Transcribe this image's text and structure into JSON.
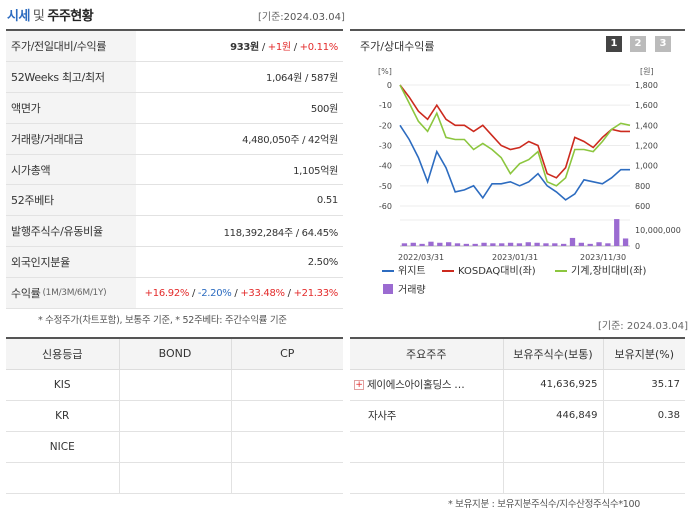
{
  "header": {
    "title_accent": "시세",
    "title_sep": "및",
    "title_rest": "주주현황",
    "basis_label": "[기준:",
    "basis_date": "2024.03.04",
    "basis_close": "]"
  },
  "info": {
    "rows": [
      {
        "label": "주가/전일대비/수익률",
        "v1": "933원",
        "sep1": " / ",
        "v2": "+1원",
        "sep2": " / ",
        "v3": "+0.11%"
      },
      {
        "label": "52Weeks 최고/최저",
        "value": "1,064원 / 587원"
      },
      {
        "label": "액면가",
        "value": "500원"
      },
      {
        "label": "거래량/거래대금",
        "value": "4,480,050주 / 42억원"
      },
      {
        "label": "시가총액",
        "value": "1,105억원"
      },
      {
        "label": "52주베타",
        "value": "0.51"
      },
      {
        "label": "발행주식수/유동비율",
        "value": "118,392,284주 / 64.45%"
      },
      {
        "label": "외국인지분율",
        "value": "2.50%"
      },
      {
        "label": "수익률",
        "label_sub": "(1M/3M/6M/1Y)",
        "r1": "+16.92%",
        "r2": "-2.20%",
        "r3": "+33.48%",
        "r4": "+21.33%"
      }
    ],
    "note": "* 수정주가(차트포함), 보통주 기준, * 52주베타: 주간수익률 기준"
  },
  "chart": {
    "title": "주가/상대수익률",
    "pages": [
      "1",
      "2",
      "3"
    ]
  },
  "chart_data": {
    "type": "line",
    "left_unit": "[%]",
    "right_unit": "[원]",
    "left_ticks": [
      "0",
      "-10",
      "-20",
      "-30",
      "-40",
      "-50",
      "-60"
    ],
    "right_ticks": [
      "1,800",
      "1,600",
      "1,400",
      "1,200",
      "1,000",
      "800",
      "600"
    ],
    "volume_ticks": [
      "10,000,000",
      "0"
    ],
    "x_ticks": [
      "2022/03/31",
      "2023/01/31",
      "2023/11/30"
    ],
    "ylim_left": [
      -65,
      0
    ],
    "series": [
      {
        "name": "위지트",
        "color": "#2d6cc0",
        "values": [
          -20,
          -27,
          -36,
          -48,
          -33,
          -41,
          -53,
          -52,
          -50,
          -56,
          -49,
          -49,
          -48,
          -50,
          -48,
          -44,
          -50,
          -53,
          -57,
          -54,
          -47,
          -48,
          -49,
          -46,
          -42,
          -42
        ]
      },
      {
        "name": "KOSDAQ대비(좌)",
        "color": "#cc2a1e",
        "values": [
          0,
          -6,
          -13,
          -17,
          -10,
          -17,
          -20,
          -20,
          -23,
          -20,
          -25,
          -30,
          -32,
          -31,
          -28,
          -30,
          -44,
          -46,
          -41,
          -26,
          -28,
          -31,
          -26,
          -22,
          -23,
          -23
        ]
      },
      {
        "name": "기계,장비대비(좌)",
        "color": "#8cc63f",
        "values": [
          0,
          -9,
          -18,
          -23,
          -14,
          -26,
          -27,
          -27,
          -32,
          -29,
          -32,
          -36,
          -44,
          -39,
          -37,
          -33,
          -48,
          -50,
          -46,
          -32,
          -32,
          -33,
          -28,
          -22,
          -19,
          -20
        ]
      }
    ],
    "volume": {
      "name": "거래량",
      "color": "#9b6bd1",
      "values": [
        0.5,
        0.6,
        0.4,
        0.8,
        0.6,
        0.7,
        0.5,
        0.4,
        0.4,
        0.6,
        0.5,
        0.5,
        0.6,
        0.5,
        0.7,
        0.6,
        0.5,
        0.5,
        0.4,
        1.5,
        0.6,
        0.4,
        0.7,
        0.5,
        5.0,
        1.4
      ]
    }
  },
  "basis_mid": "[기준: 2024.03.04]",
  "credit": {
    "headers": [
      "신용등급",
      "BOND",
      "CP"
    ],
    "rows": [
      [
        "KIS",
        "",
        ""
      ],
      [
        "KR",
        "",
        ""
      ],
      [
        "NICE",
        "",
        ""
      ]
    ]
  },
  "holders": {
    "headers": [
      "주요주주",
      "보유주식수(보통)",
      "보유지분(%)"
    ],
    "rows": [
      {
        "name": "제이에스아이홀딩스 …",
        "shares": "41,636,925",
        "pct": "35.17",
        "expand": "+"
      },
      {
        "name": "자사주",
        "shares": "446,849",
        "pct": "0.38"
      }
    ],
    "note": "* 보유지분 : 보유지분주식수/지수산정주식수*100"
  }
}
